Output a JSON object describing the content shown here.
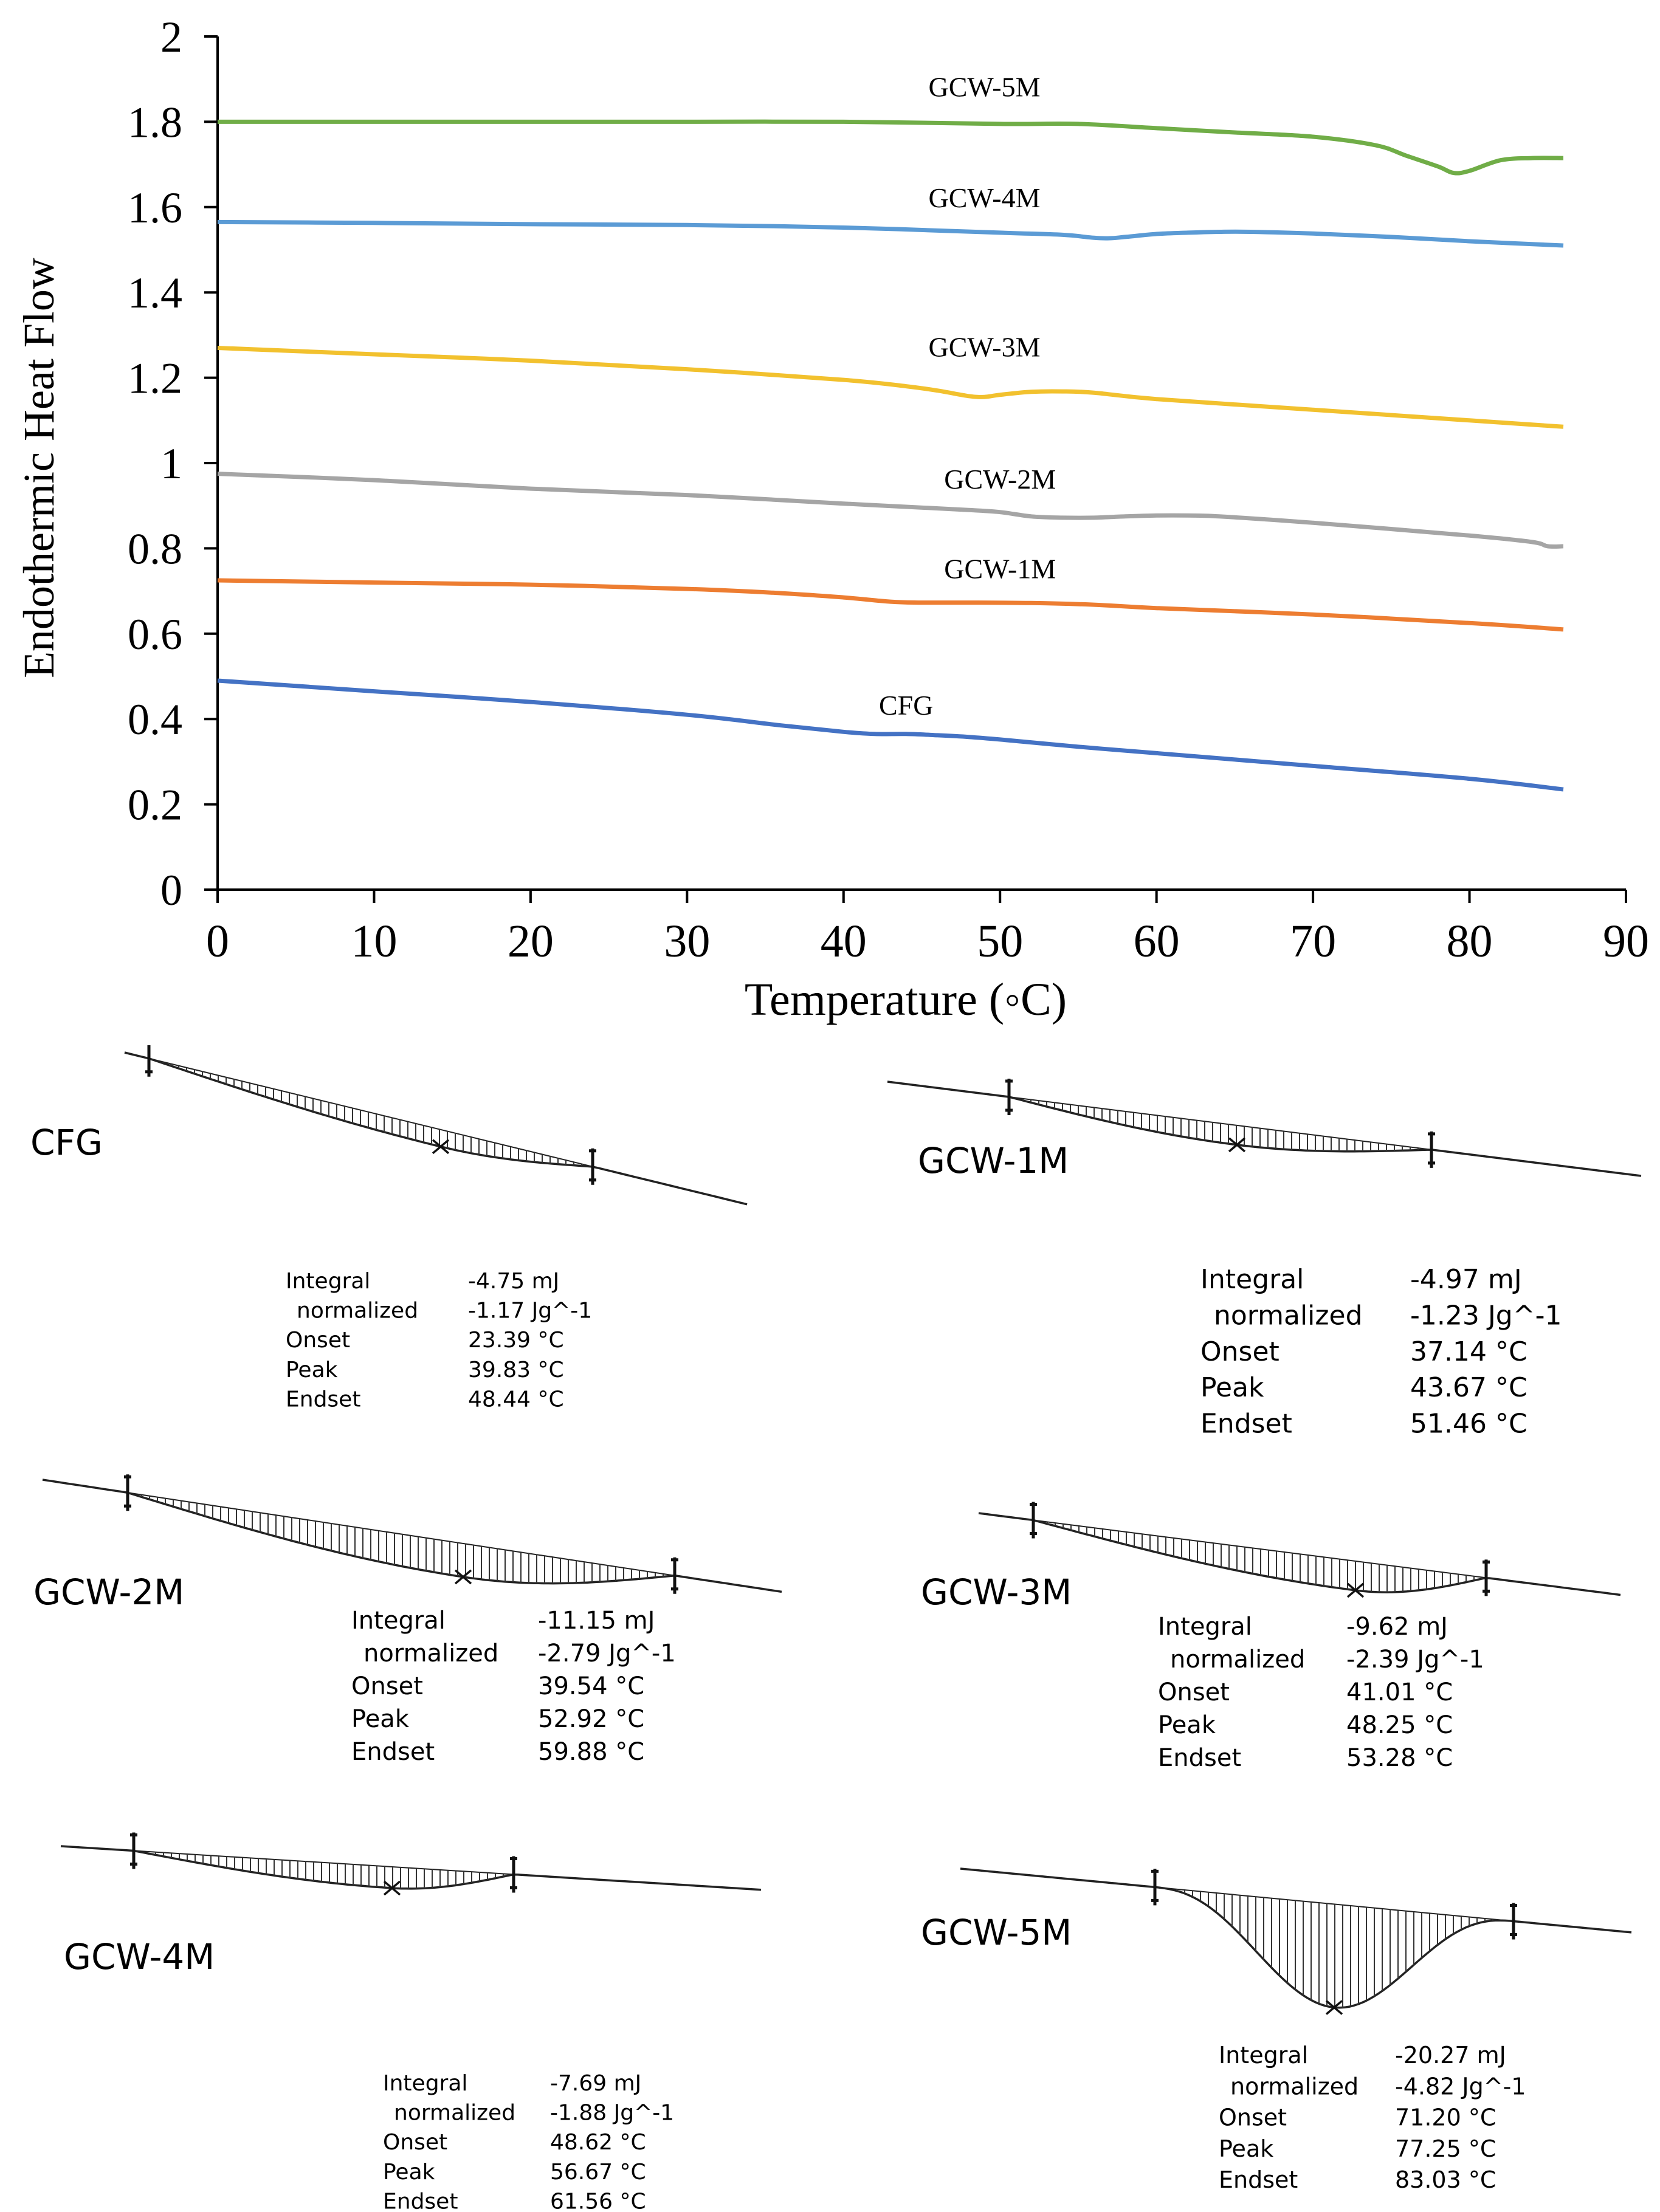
{
  "chart_data": [
    {
      "type": "line",
      "xlabel": "Temperature  (◦C)",
      "ylabel": "Endothermic Heat Flow",
      "xlim": [
        0,
        90
      ],
      "ylim": [
        0,
        2
      ],
      "xticks": [
        "0",
        "10",
        "20",
        "30",
        "40",
        "50",
        "60",
        "70",
        "80",
        "90"
      ],
      "yticks": [
        "0",
        "0.2",
        "0.4",
        "0.6",
        "0.8",
        "1",
        "1.2",
        "1.4",
        "1.6",
        "1.8",
        "2"
      ],
      "grid": false,
      "series": [
        {
          "name": "GCW-5M",
          "color": "#70ad47",
          "label_at": [
            49,
            1.86
          ],
          "x": [
            0,
            10,
            20,
            30,
            40,
            50,
            55,
            60,
            65,
            70,
            74,
            76,
            78,
            79,
            80,
            82,
            84,
            86
          ],
          "y": [
            1.8,
            1.8,
            1.8,
            1.8,
            1.8,
            1.795,
            1.795,
            1.785,
            1.775,
            1.765,
            1.745,
            1.72,
            1.695,
            1.68,
            1.685,
            1.71,
            1.715,
            1.715
          ]
        },
        {
          "name": "GCW-4M",
          "color": "#5b9bd5",
          "label_at": [
            49,
            1.6
          ],
          "x": [
            0,
            10,
            20,
            30,
            40,
            50,
            54,
            56,
            57,
            58,
            60,
            62,
            64,
            66,
            70,
            75,
            80,
            86
          ],
          "y": [
            1.565,
            1.563,
            1.56,
            1.558,
            1.552,
            1.54,
            1.535,
            1.528,
            1.527,
            1.53,
            1.537,
            1.54,
            1.542,
            1.542,
            1.538,
            1.53,
            1.52,
            1.51
          ]
        },
        {
          "name": "GCW-3M",
          "color": "#f2c12e",
          "label_at": [
            49,
            1.25
          ],
          "x": [
            0,
            10,
            20,
            30,
            40,
            44,
            46,
            48,
            49,
            50,
            52,
            54,
            56,
            60,
            70,
            80,
            86
          ],
          "y": [
            1.27,
            1.255,
            1.24,
            1.22,
            1.195,
            1.18,
            1.17,
            1.157,
            1.155,
            1.16,
            1.167,
            1.168,
            1.165,
            1.15,
            1.125,
            1.1,
            1.085
          ]
        },
        {
          "name": "GCW-2M",
          "color": "#a5a5a5",
          "label_at": [
            50,
            0.94
          ],
          "x": [
            0,
            10,
            20,
            30,
            40,
            48,
            50,
            52,
            54,
            56,
            58,
            60,
            62,
            64,
            70,
            80,
            84,
            85,
            86
          ],
          "y": [
            0.975,
            0.96,
            0.94,
            0.925,
            0.905,
            0.89,
            0.885,
            0.875,
            0.872,
            0.872,
            0.875,
            0.877,
            0.877,
            0.875,
            0.86,
            0.83,
            0.815,
            0.805,
            0.805
          ]
        },
        {
          "name": "GCW-1M",
          "color": "#ed7d31",
          "label_at": [
            50,
            0.73
          ],
          "x": [
            0,
            10,
            20,
            30,
            36,
            40,
            43,
            45,
            48,
            52,
            56,
            60,
            70,
            80,
            86
          ],
          "y": [
            0.725,
            0.72,
            0.715,
            0.705,
            0.695,
            0.685,
            0.675,
            0.673,
            0.673,
            0.672,
            0.668,
            0.66,
            0.645,
            0.625,
            0.61
          ]
        },
        {
          "name": "CFG",
          "color": "#4472c4",
          "label_at": [
            44,
            0.41
          ],
          "x": [
            0,
            10,
            20,
            30,
            36,
            40,
            42,
            44,
            46,
            48,
            50,
            55,
            60,
            70,
            80,
            86
          ],
          "y": [
            0.49,
            0.465,
            0.44,
            0.41,
            0.385,
            0.37,
            0.365,
            0.365,
            0.362,
            0.358,
            0.352,
            0.335,
            0.32,
            0.29,
            0.26,
            0.235
          ]
        }
      ]
    }
  ],
  "panels": [
    {
      "name": "CFG",
      "integral": "-4.75 mJ",
      "normalized": "-1.17 Jg^-1",
      "onset": "23.39 °C",
      "peak": "39.83 °C",
      "endset": "48.44 °C"
    },
    {
      "name": "GCW-1M",
      "integral": "-4.97 mJ",
      "normalized": "-1.23 Jg^-1",
      "onset": "37.14 °C",
      "peak": "43.67 °C",
      "endset": "51.46 °C"
    },
    {
      "name": "GCW-2M",
      "integral": "-11.15 mJ",
      "normalized": "-2.79 Jg^-1",
      "onset": "39.54 °C",
      "peak": "52.92 °C",
      "endset": "59.88 °C"
    },
    {
      "name": "GCW-3M",
      "integral": "-9.62 mJ",
      "normalized": "-2.39 Jg^-1",
      "onset": "41.01 °C",
      "peak": "48.25 °C",
      "endset": "53.28 °C"
    },
    {
      "name": "GCW-4M",
      "integral": "-7.69 mJ",
      "normalized": "-1.88 Jg^-1",
      "onset": "48.62 °C",
      "peak": "56.67 °C",
      "endset": "61.56 °C"
    },
    {
      "name": "GCW-5M",
      "integral": "-20.27 mJ",
      "normalized": "-4.82 Jg^-1",
      "onset": "71.20 °C",
      "peak": "77.25 °C",
      "endset": "83.03 °C"
    }
  ],
  "labels": {
    "integral": "Integral",
    "normalized": "normalized",
    "onset": "Onset",
    "peak": "Peak",
    "endset": "Endset"
  }
}
